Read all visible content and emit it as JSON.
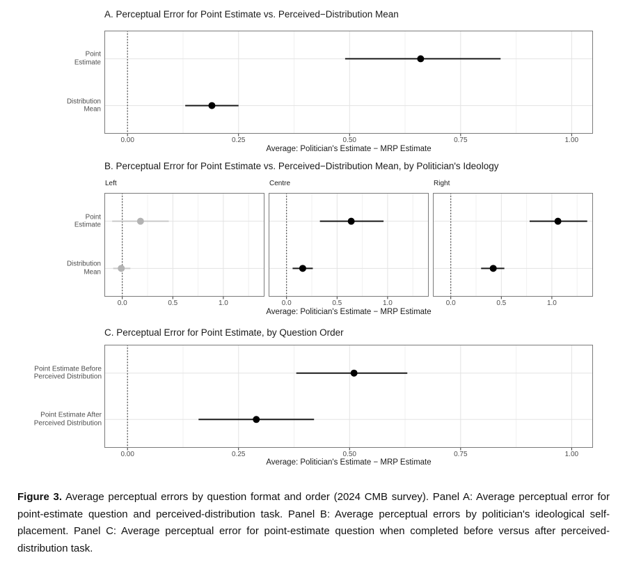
{
  "colors": {
    "point_black": "#000000",
    "line_black": "#1a1a1a",
    "point_gray": "#b3b3b3",
    "line_gray": "#c9c9c9",
    "grid_major": "#e3e3e3",
    "grid_minor": "#f0f0f0",
    "panel_border": "#7a7a7a",
    "tick_mark": "#333333",
    "tick_text": "#4d4d4d",
    "title_text": "#1a1a1a"
  },
  "chart_data": [
    {
      "type": "dot_interval",
      "panel": "A",
      "title": "A. Perceptual Error for Point Estimate vs. Perceived−Distribution Mean",
      "xlabel": "Average: Politician's Estimate − MRP Estimate",
      "xlim": [
        -0.052,
        1.048
      ],
      "xticks": [
        0,
        0.25,
        0.5,
        0.75,
        1
      ],
      "xtick_labels": [
        "0.00",
        "0.25",
        "0.50",
        "0.75",
        "1.00"
      ],
      "minor_grid_step": 0.125,
      "zero_line": 0,
      "grid": true,
      "legend": "none",
      "facets": [
        {
          "label": "",
          "rows": [
            {
              "label": "Point Estimate",
              "label_lines": [
                "Point",
                "Estimate"
              ],
              "estimate": 0.66,
              "ci_low": 0.49,
              "ci_high": 0.84,
              "color": "black"
            },
            {
              "label": "Distribution Mean",
              "label_lines": [
                "Distribution",
                "Mean"
              ],
              "estimate": 0.19,
              "ci_low": 0.13,
              "ci_high": 0.25,
              "color": "black"
            }
          ]
        }
      ]
    },
    {
      "type": "dot_interval",
      "panel": "B",
      "title": "B. Perceptual Error for Point Estimate vs. Perceived−Distribution Mean, by Politician's Ideology",
      "xlabel": "Average: Politician's Estimate − MRP Estimate",
      "xlim": [
        -0.177,
        1.407
      ],
      "xticks": [
        0,
        0.5,
        1
      ],
      "xtick_labels": [
        "0.0",
        "0.5",
        "1.0"
      ],
      "minor_grid_step": 0.25,
      "zero_line": 0,
      "grid": true,
      "legend": "none",
      "facets": [
        {
          "label": "Left",
          "rows": [
            {
              "label": "Point Estimate",
              "label_lines": [
                "Point",
                "Estimate"
              ],
              "estimate": 0.18,
              "ci_low": -0.1,
              "ci_high": 0.46,
              "color": "gray"
            },
            {
              "label": "Distribution Mean",
              "label_lines": [
                "Distribution",
                "Mean"
              ],
              "estimate": -0.01,
              "ci_low": -0.09,
              "ci_high": 0.08,
              "color": "gray"
            }
          ]
        },
        {
          "label": "Centre",
          "rows": [
            {
              "label": "Point Estimate",
              "estimate": 0.64,
              "ci_low": 0.33,
              "ci_high": 0.96,
              "color": "black"
            },
            {
              "label": "Distribution Mean",
              "estimate": 0.16,
              "ci_low": 0.06,
              "ci_high": 0.26,
              "color": "black"
            }
          ]
        },
        {
          "label": "Right",
          "rows": [
            {
              "label": "Point Estimate",
              "estimate": 1.06,
              "ci_low": 0.78,
              "ci_high": 1.35,
              "color": "black"
            },
            {
              "label": "Distribution Mean",
              "estimate": 0.42,
              "ci_low": 0.3,
              "ci_high": 0.53,
              "color": "black"
            }
          ]
        }
      ]
    },
    {
      "type": "dot_interval",
      "panel": "C",
      "title": "C. Perceptual Error for Point Estimate, by Question Order",
      "xlabel": "Average: Politician's Estimate − MRP Estimate",
      "xlim": [
        -0.052,
        1.048
      ],
      "xticks": [
        0,
        0.25,
        0.5,
        0.75,
        1
      ],
      "xtick_labels": [
        "0.00",
        "0.25",
        "0.50",
        "0.75",
        "1.00"
      ],
      "minor_grid_step": 0.125,
      "zero_line": 0,
      "grid": true,
      "legend": "none",
      "facets": [
        {
          "label": "",
          "rows": [
            {
              "label": "Point Estimate Before Perceived Distribution",
              "label_lines": [
                "Point Estimate Before",
                "Perceived Distribution"
              ],
              "estimate": 0.51,
              "ci_low": 0.38,
              "ci_high": 0.63,
              "color": "black"
            },
            {
              "label": "Point Estimate After Perceived Distribution",
              "label_lines": [
                "Point Estimate After",
                "Perceived Distribution"
              ],
              "estimate": 0.29,
              "ci_low": 0.16,
              "ci_high": 0.42,
              "color": "black"
            }
          ]
        }
      ]
    }
  ],
  "caption": {
    "label": "Figure 3.",
    "body": "Average perceptual errors by question format and order (2024 CMB survey). Panel A: Average perceptual error for point-estimate question and perceived-distribution task. Panel B: Average perceptual errors by politician's ideological self-placement. Panel C: Average perceptual error for point-estimate question when completed before versus after perceived-distribution task."
  }
}
